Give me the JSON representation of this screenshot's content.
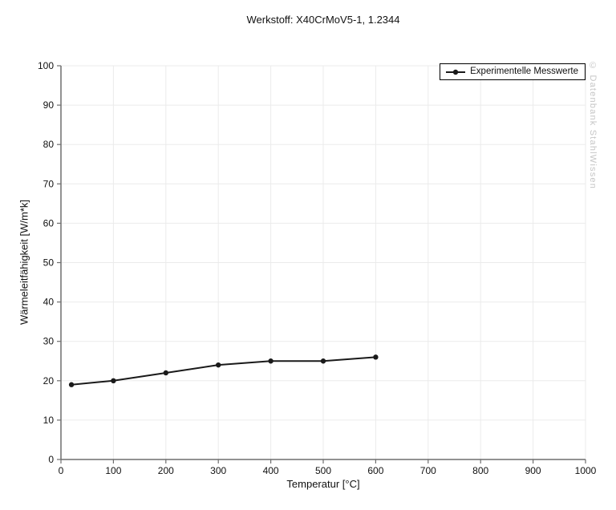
{
  "title": "Werkstoff: X40CrMoV5-1, 1.2344",
  "watermark": "© Datenbank StahlWissen",
  "legend": {
    "label": "Experimentelle Messwerte",
    "position": "top-right"
  },
  "colors": {
    "background": "#ffffff",
    "grid": "#ebebeb",
    "axis": "#6e6e6e",
    "tick_text": "#111111",
    "series": "#1a1a1a",
    "watermark": "#c6c6c6",
    "legend_border": "#000000"
  },
  "chart_data": {
    "type": "line",
    "title": "Werkstoff: X40CrMoV5-1, 1.2344",
    "xlabel": "Temperatur [°C]",
    "ylabel": "Wärmeleitfähigkeit [W/m*k]",
    "xlim": [
      0,
      1000
    ],
    "ylim": [
      0,
      100
    ],
    "x_ticks": [
      0,
      100,
      200,
      300,
      400,
      500,
      600,
      700,
      800,
      900,
      1000
    ],
    "y_ticks": [
      0,
      10,
      20,
      30,
      40,
      50,
      60,
      70,
      80,
      90,
      100
    ],
    "grid": true,
    "legend_position": "top-right",
    "series": [
      {
        "name": "Experimentelle Messwerte",
        "color": "#1a1a1a",
        "marker": "circle",
        "x": [
          20,
          100,
          200,
          300,
          400,
          500,
          600
        ],
        "y": [
          19,
          20,
          22,
          24,
          25,
          25,
          26
        ]
      }
    ]
  }
}
